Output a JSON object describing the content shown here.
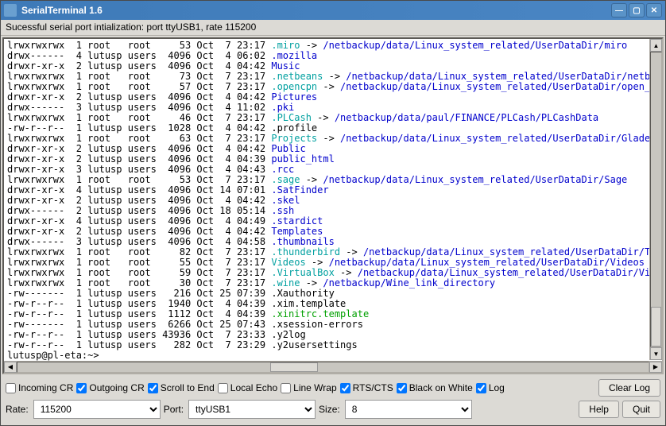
{
  "window": {
    "title": "SerialTerminal 1.6"
  },
  "menubar": {
    "status": "Sucessful serial port intialization: port ttyUSB1, rate 115200"
  },
  "listing": [
    {
      "perm": "lrwxrwxrwx",
      "n": "1",
      "own": "root",
      "grp": "root",
      "size": "53",
      "mon": "Oct",
      "d": "7",
      "time": "23:17",
      "name": ".miro",
      "cls": "cyan",
      "arrow": " -> ",
      "target": "/netbackup/data/Linux_system_related/UserDataDir/miro",
      "tcls": "blue"
    },
    {
      "perm": "drwx------",
      "n": "4",
      "own": "lutusp",
      "grp": "users",
      "size": "4096",
      "mon": "Oct",
      "d": "4",
      "time": "06:02",
      "name": ".mozilla",
      "cls": "blue"
    },
    {
      "perm": "drwxr-xr-x",
      "n": "2",
      "own": "lutusp",
      "grp": "users",
      "size": "4096",
      "mon": "Oct",
      "d": "4",
      "time": "04:42",
      "name": "Music",
      "cls": "blue"
    },
    {
      "perm": "lrwxrwxrwx",
      "n": "1",
      "own": "root",
      "grp": "root",
      "size": "73",
      "mon": "Oct",
      "d": "7",
      "time": "23:17",
      "name": ".netbeans",
      "cls": "cyan",
      "arrow": " -> ",
      "target": "/netbackup/data/Linux_system_related/UserDataDir/netbeans",
      "tcls": "blue"
    },
    {
      "perm": "lrwxrwxrwx",
      "n": "1",
      "own": "root",
      "grp": "root",
      "size": "57",
      "mon": "Oct",
      "d": "7",
      "time": "23:17",
      "name": ".opencpn",
      "cls": "cyan",
      "arrow": " -> ",
      "target": "/netbackup/data/Linux_system_related/UserDataDir/open_cpn",
      "tcls": "blue"
    },
    {
      "perm": "drwxr-xr-x",
      "n": "2",
      "own": "lutusp",
      "grp": "users",
      "size": "4096",
      "mon": "Oct",
      "d": "4",
      "time": "04:42",
      "name": "Pictures",
      "cls": "blue"
    },
    {
      "perm": "drwx------",
      "n": "3",
      "own": "lutusp",
      "grp": "users",
      "size": "4096",
      "mon": "Oct",
      "d": "4",
      "time": "11:02",
      "name": ".pki",
      "cls": "blue"
    },
    {
      "perm": "lrwxrwxrwx",
      "n": "1",
      "own": "root",
      "grp": "root",
      "size": "46",
      "mon": "Oct",
      "d": "7",
      "time": "23:17",
      "name": ".PLCash",
      "cls": "cyan",
      "arrow": " -> ",
      "target": "/netbackup/data/paul/FINANCE/PLCash/PLCashData",
      "tcls": "blue"
    },
    {
      "perm": "-rw-r--r--",
      "n": "1",
      "own": "lutusp",
      "grp": "users",
      "size": "1028",
      "mon": "Oct",
      "d": "4",
      "time": "04:42",
      "name": ".profile",
      "cls": ""
    },
    {
      "perm": "lrwxrwxrwx",
      "n": "1",
      "own": "root",
      "grp": "root",
      "size": "63",
      "mon": "Oct",
      "d": "7",
      "time": "23:17",
      "name": "Projects",
      "cls": "cyan",
      "arrow": " -> ",
      "target": "/netbackup/data/Linux_system_related/UserDataDir/Glade_pro",
      "tcls": "blue"
    },
    {
      "perm": "drwxr-xr-x",
      "n": "2",
      "own": "lutusp",
      "grp": "users",
      "size": "4096",
      "mon": "Oct",
      "d": "4",
      "time": "04:42",
      "name": "Public",
      "cls": "blue"
    },
    {
      "perm": "drwxr-xr-x",
      "n": "2",
      "own": "lutusp",
      "grp": "users",
      "size": "4096",
      "mon": "Oct",
      "d": "4",
      "time": "04:39",
      "name": "public_html",
      "cls": "blue"
    },
    {
      "perm": "drwxr-xr-x",
      "n": "3",
      "own": "lutusp",
      "grp": "users",
      "size": "4096",
      "mon": "Oct",
      "d": "4",
      "time": "04:43",
      "name": ".rcc",
      "cls": "blue"
    },
    {
      "perm": "lrwxrwxrwx",
      "n": "1",
      "own": "root",
      "grp": "root",
      "size": "53",
      "mon": "Oct",
      "d": "7",
      "time": "23:17",
      "name": ".sage",
      "cls": "cyan",
      "arrow": " -> ",
      "target": "/netbackup/data/Linux_system_related/UserDataDir/Sage",
      "tcls": "blue"
    },
    {
      "perm": "drwxr-xr-x",
      "n": "4",
      "own": "lutusp",
      "grp": "users",
      "size": "4096",
      "mon": "Oct",
      "d": "14",
      "time": "07:01",
      "name": ".SatFinder",
      "cls": "blue"
    },
    {
      "perm": "drwxr-xr-x",
      "n": "2",
      "own": "lutusp",
      "grp": "users",
      "size": "4096",
      "mon": "Oct",
      "d": "4",
      "time": "04:42",
      "name": ".skel",
      "cls": "blue"
    },
    {
      "perm": "drwx------",
      "n": "2",
      "own": "lutusp",
      "grp": "users",
      "size": "4096",
      "mon": "Oct",
      "d": "18",
      "time": "05:14",
      "name": ".ssh",
      "cls": "blue"
    },
    {
      "perm": "drwxr-xr-x",
      "n": "4",
      "own": "lutusp",
      "grp": "users",
      "size": "4096",
      "mon": "Oct",
      "d": "4",
      "time": "04:49",
      "name": ".stardict",
      "cls": "blue"
    },
    {
      "perm": "drwxr-xr-x",
      "n": "2",
      "own": "lutusp",
      "grp": "users",
      "size": "4096",
      "mon": "Oct",
      "d": "4",
      "time": "04:42",
      "name": "Templates",
      "cls": "blue"
    },
    {
      "perm": "drwx------",
      "n": "3",
      "own": "lutusp",
      "grp": "users",
      "size": "4096",
      "mon": "Oct",
      "d": "4",
      "time": "04:58",
      "name": ".thumbnails",
      "cls": "blue"
    },
    {
      "perm": "lrwxrwxrwx",
      "n": "1",
      "own": "root",
      "grp": "root",
      "size": "82",
      "mon": "Oct",
      "d": "7",
      "time": "23:17",
      "name": ".thunderbird",
      "cls": "cyan",
      "arrow": " -> ",
      "target": "/netbackup/data/Linux_system_related/UserDataDir/Thund",
      "tcls": "blue"
    },
    {
      "perm": "lrwxrwxrwx",
      "n": "1",
      "own": "root",
      "grp": "root",
      "size": "55",
      "mon": "Oct",
      "d": "7",
      "time": "23:17",
      "name": "Videos",
      "cls": "cyan",
      "arrow": " -> ",
      "target": "/netbackup/data/Linux_system_related/UserDataDir/Videos",
      "tcls": "blue"
    },
    {
      "perm": "lrwxrwxrwx",
      "n": "1",
      "own": "root",
      "grp": "root",
      "size": "59",
      "mon": "Oct",
      "d": "7",
      "time": "23:17",
      "name": ".VirtualBox",
      "cls": "cyan",
      "arrow": " -> ",
      "target": "/netbackup/data/Linux_system_related/UserDataDir/Virtua",
      "tcls": "blue"
    },
    {
      "perm": "lrwxrwxrwx",
      "n": "1",
      "own": "root",
      "grp": "root",
      "size": "30",
      "mon": "Oct",
      "d": "7",
      "time": "23:17",
      "name": ".wine",
      "cls": "cyan",
      "arrow": " -> ",
      "target": "/netbackup/Wine_link_directory",
      "tcls": "blue"
    },
    {
      "perm": "-rw-------",
      "n": "1",
      "own": "lutusp",
      "grp": "users",
      "size": "216",
      "mon": "Oct",
      "d": "25",
      "time": "07:39",
      "name": ".Xauthority",
      "cls": ""
    },
    {
      "perm": "-rw-r--r--",
      "n": "1",
      "own": "lutusp",
      "grp": "users",
      "size": "1940",
      "mon": "Oct",
      "d": "4",
      "time": "04:39",
      "name": ".xim.template",
      "cls": ""
    },
    {
      "perm": "-rw-r--r--",
      "n": "1",
      "own": "lutusp",
      "grp": "users",
      "size": "1112",
      "mon": "Oct",
      "d": "4",
      "time": "04:39",
      "name": ".xinitrc.template",
      "cls": "green"
    },
    {
      "perm": "-rw-------",
      "n": "1",
      "own": "lutusp",
      "grp": "users",
      "size": "6266",
      "mon": "Oct",
      "d": "25",
      "time": "07:43",
      "name": ".xsession-errors",
      "cls": ""
    },
    {
      "perm": "-rw-r--r--",
      "n": "1",
      "own": "lutusp",
      "grp": "users",
      "size": "43936",
      "mon": "Oct",
      "d": "7",
      "time": "23:33",
      "name": ".y2log",
      "cls": ""
    },
    {
      "perm": "-rw-r--r--",
      "n": "1",
      "own": "lutusp",
      "grp": "users",
      "size": "282",
      "mon": "Oct",
      "d": "7",
      "time": "23:29",
      "name": ".y2usersettings",
      "cls": ""
    }
  ],
  "prompt1": "lutusp@pl-eta:~>",
  "prompt2": "lutusp@pl-eta:~> ",
  "cursor": "|",
  "checks": {
    "incoming_cr": {
      "label": "Incoming CR",
      "checked": false
    },
    "outgoing_cr": {
      "label": "Outgoing CR",
      "checked": true
    },
    "scroll_end": {
      "label": "Scroll to End",
      "checked": true
    },
    "local_echo": {
      "label": "Local Echo",
      "checked": false
    },
    "line_wrap": {
      "label": "Line Wrap",
      "checked": false
    },
    "rts_cts": {
      "label": "RTS/CTS",
      "checked": true
    },
    "bw": {
      "label": "Black on White",
      "checked": true
    },
    "log": {
      "label": "Log",
      "checked": true
    }
  },
  "buttons": {
    "clear_log": "Clear Log",
    "help": "Help",
    "quit": "Quit"
  },
  "fields": {
    "rate": {
      "label": "Rate:",
      "value": "115200"
    },
    "port": {
      "label": "Port:",
      "value": "ttyUSB1"
    },
    "size": {
      "label": "Size:",
      "value": "8"
    }
  }
}
